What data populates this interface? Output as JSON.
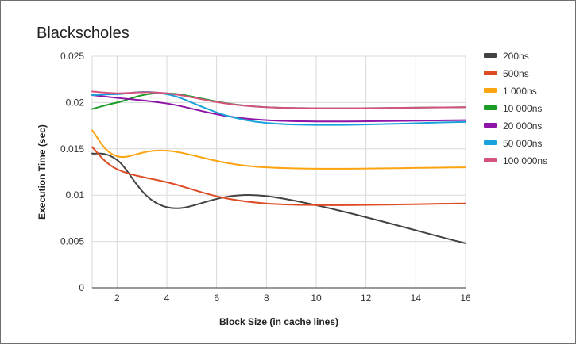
{
  "chart_data": {
    "type": "line",
    "title": "Blackscholes",
    "xlabel": "Block Size (in cache lines)",
    "ylabel": "Execution Time (sec)",
    "x": [
      1,
      2,
      4,
      8,
      16
    ],
    "xlim": [
      1,
      16
    ],
    "xticks": [
      2,
      4,
      6,
      8,
      10,
      12,
      14,
      16
    ],
    "xtick_labels": [
      "2",
      "4",
      "6",
      "8",
      "10",
      "12",
      "14",
      "16"
    ],
    "ylim": [
      0,
      0.025
    ],
    "yticks": [
      0,
      0.005,
      0.01,
      0.015,
      0.02,
      0.025
    ],
    "ytick_labels": [
      "0",
      "0.005",
      "0.01",
      "0.015",
      "0.02",
      "0.025"
    ],
    "grid": true,
    "legend": "right",
    "series": [
      {
        "name": "200ns",
        "color": "#434343",
        "values": [
          0.0145,
          0.0138,
          0.0087,
          0.0099,
          0.0048
        ]
      },
      {
        "name": "500ns",
        "color": "#dd4b25",
        "values": [
          0.0152,
          0.0128,
          0.0114,
          0.0091,
          0.0091
        ]
      },
      {
        "name": "1 000ns",
        "color": "#fca310",
        "values": [
          0.017,
          0.0142,
          0.0148,
          0.013,
          0.013
        ]
      },
      {
        "name": "10 000ns",
        "color": "#1a9c26",
        "values": [
          0.0193,
          0.02,
          0.021,
          0.0195,
          0.0195
        ]
      },
      {
        "name": "20 000ns",
        "color": "#8e14a6",
        "values": [
          0.0208,
          0.0205,
          0.0199,
          0.0181,
          0.0181
        ]
      },
      {
        "name": "50 000ns",
        "color": "#19a2db",
        "values": [
          0.0208,
          0.0209,
          0.0209,
          0.0178,
          0.0179
        ]
      },
      {
        "name": "100 000ns",
        "color": "#d3527f",
        "values": [
          0.0212,
          0.021,
          0.021,
          0.0195,
          0.0195
        ]
      }
    ]
  }
}
